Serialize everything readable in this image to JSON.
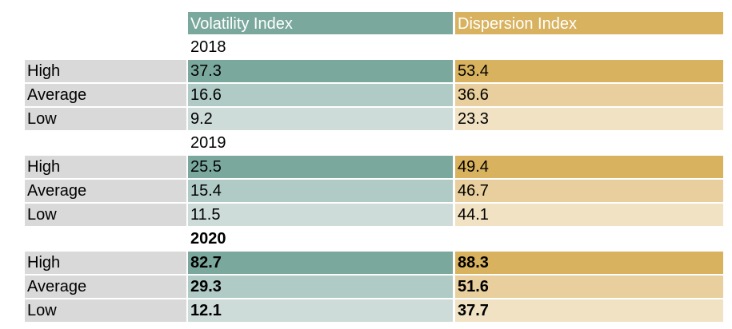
{
  "header": {
    "col1": "Volatility Index",
    "col2": "Dispersion Index"
  },
  "colors": {
    "volatility_dark": "#7ba89d",
    "volatility_mid": "#b0cbc5",
    "volatility_light": "#cddcd8",
    "dispersion_dark": "#d8b25e",
    "dispersion_mid": "#e8cf9d",
    "dispersion_light": "#f0e2c2",
    "label_bg": "#d9d9d9"
  },
  "years": [
    {
      "year": "2018",
      "bold": false,
      "rows": [
        {
          "label": "High",
          "volatility": "37.3",
          "dispersion": "53.4"
        },
        {
          "label": "Average",
          "volatility": "16.6",
          "dispersion": "36.6"
        },
        {
          "label": "Low",
          "volatility": "9.2",
          "dispersion": "23.3"
        }
      ]
    },
    {
      "year": "2019",
      "bold": false,
      "rows": [
        {
          "label": "High",
          "volatility": "25.5",
          "dispersion": "49.4"
        },
        {
          "label": "Average",
          "volatility": "15.4",
          "dispersion": "46.7"
        },
        {
          "label": "Low",
          "volatility": "11.5",
          "dispersion": "44.1"
        }
      ]
    },
    {
      "year": "2020",
      "bold": true,
      "rows": [
        {
          "label": "High",
          "volatility": "82.7",
          "dispersion": "88.3"
        },
        {
          "label": "Average",
          "volatility": "29.3",
          "dispersion": "51.6"
        },
        {
          "label": "Low",
          "volatility": "12.1",
          "dispersion": "37.7"
        }
      ]
    }
  ]
}
